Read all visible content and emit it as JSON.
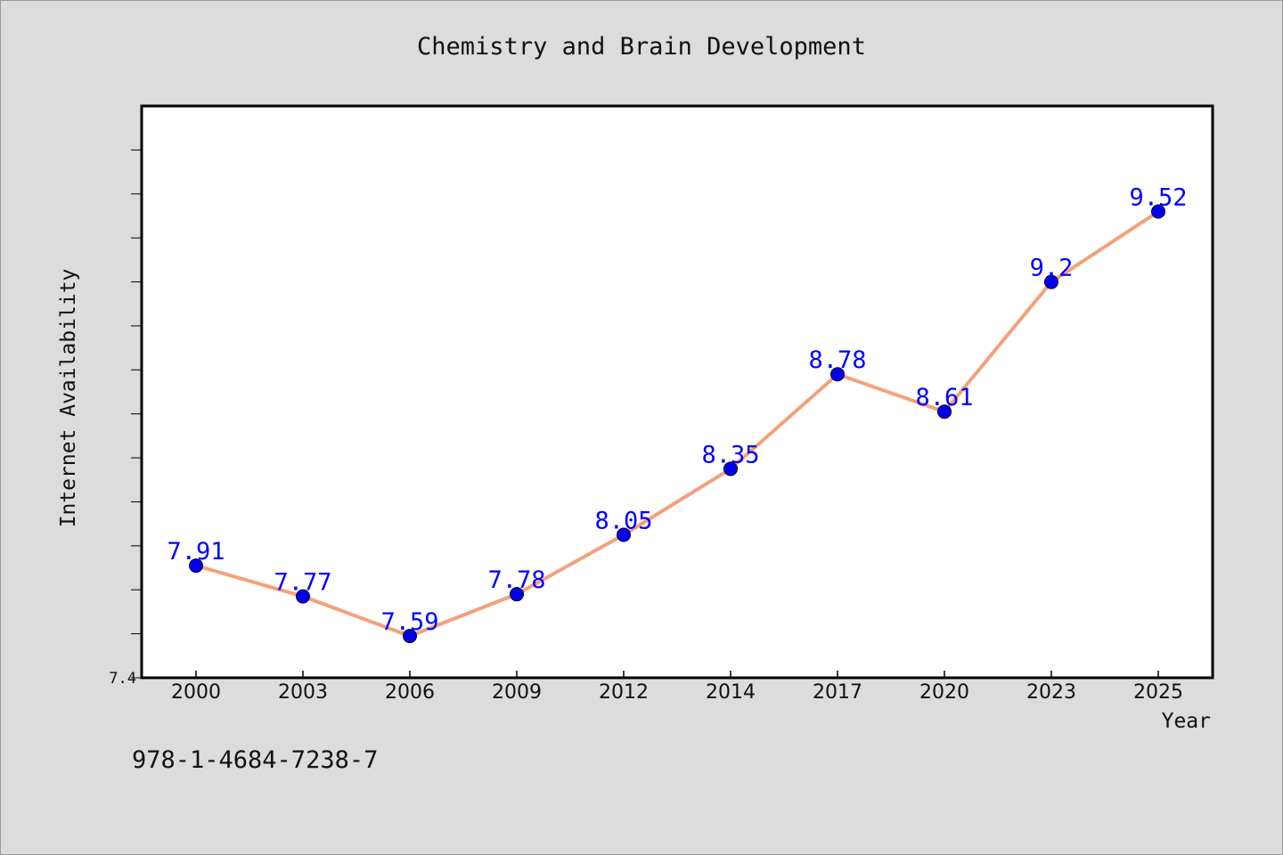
{
  "chart_data": {
    "type": "line",
    "title": "Chemistry and Brain Development",
    "xlabel": "Year",
    "ylabel": "Internet Availability",
    "categories": [
      "2000",
      "2003",
      "2006",
      "2009",
      "2012",
      "2014",
      "2017",
      "2020",
      "2023",
      "2025"
    ],
    "series": [
      {
        "values": [
          7.91,
          7.77,
          7.59,
          7.78,
          8.05,
          8.35,
          8.78,
          8.61,
          9.2,
          9.52
        ],
        "data_labels": [
          "7.91",
          "7.77",
          "7.59",
          "7.78",
          "8.05",
          "8.35",
          "8.78",
          "8.61",
          "9.2",
          "9.52"
        ]
      }
    ],
    "ylim": [
      7.4,
      10.0
    ],
    "y_tick_labels": [
      "7.4"
    ],
    "grid": false,
    "legend": "none",
    "colors": {
      "line": "#f4a07c",
      "marker": "#0000ee",
      "data_label": "#0000ff",
      "background": "#dcdcdc",
      "plot_background": "#ffffff"
    }
  },
  "footer": {
    "isbn": "978-1-4684-7238-7"
  }
}
